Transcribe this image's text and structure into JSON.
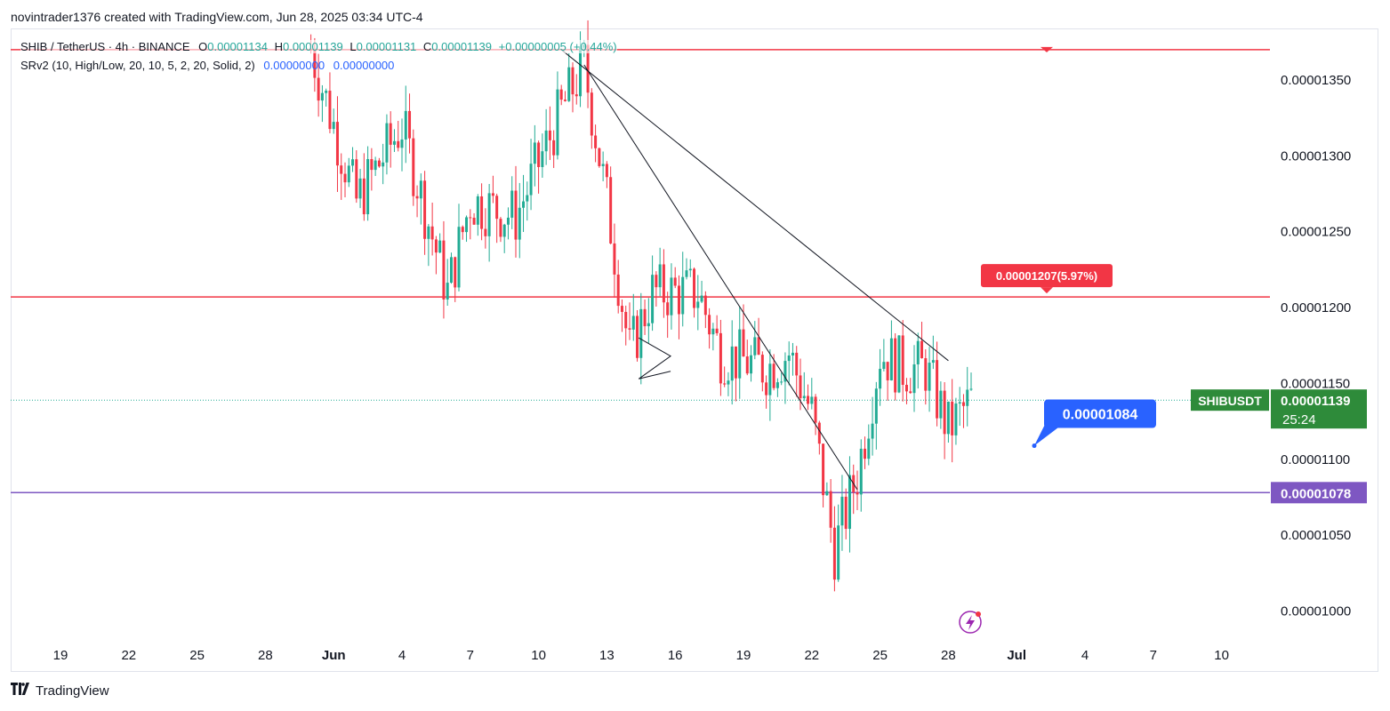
{
  "header": {
    "text": "novintrader1376 created with TradingView.com, Jun 28, 2025 03:34 UTC-4"
  },
  "legend": {
    "symbol": "SHIB / TetherUS · 4h · BINANCE",
    "o_key": "O",
    "o_val": "0.00001134",
    "h_key": "H",
    "h_val": "0.00001139",
    "l_key": "L",
    "l_val": "0.00001131",
    "c_key": "C",
    "c_val": "0.00001139",
    "change": "+0.00000005 (+0.44%)",
    "indicator": "SRv2 (10, High/Low, 20, 10, 5, 2, 20, Solid, 2)",
    "ind_val1": "0.00000000",
    "ind_val2": "0.00000000"
  },
  "footer": {
    "brand": "TradingView"
  },
  "colors": {
    "up": "#22ab94",
    "down": "#f23645",
    "resistance_line": "#f23645",
    "support_line": "#7e57c2",
    "price_tag": "#2e8b3a",
    "note_tag": "#2962ff",
    "trendline": "#131722"
  },
  "chart_data": {
    "type": "candlestick",
    "symbol": "SHIBUSDT",
    "timeframe": "4h",
    "x_tick_labels": [
      "19",
      "22",
      "25",
      "28",
      "Jun",
      "4",
      "7",
      "10",
      "13",
      "16",
      "19",
      "22",
      "25",
      "28",
      "Jul",
      "4",
      "7",
      "10"
    ],
    "y_tick_labels": [
      "0.00001350",
      "0.00001300",
      "0.00001250",
      "0.00001200",
      "0.00001150",
      "0.00001100",
      "0.00001050",
      "0.00001000"
    ],
    "ylim": [
      9.78e-06,
      1.384e-05
    ],
    "last_price": "0.00001139",
    "countdown": "25:24",
    "symbol_tag": "SHIBUSDT",
    "horizontal_lines": [
      {
        "name": "top resistance",
        "value": 1.37e-05,
        "color": "#f23645"
      },
      {
        "name": "resistance",
        "value": 1.207e-05,
        "color": "#f23645",
        "label": "0.00001207(5.97%)"
      },
      {
        "name": "support",
        "value": 1.078e-05,
        "color": "#7e57c2",
        "label": "0.00001078"
      }
    ],
    "note_label": "0.00001084",
    "trendlines": [
      {
        "from": [
          "Jun 10",
          1.37e-05
        ],
        "to": [
          "Jun 27",
          1.165e-05
        ]
      },
      {
        "from": [
          "Jun 11",
          1.36e-05
        ],
        "to": [
          "Jun 23",
          1.08e-05
        ]
      }
    ],
    "anchors": [
      {
        "date": "May 30",
        "value": 1.37e-05
      },
      {
        "date": "Jun 1",
        "value": 1.27e-05
      },
      {
        "date": "Jun 3",
        "value": 1.32e-05
      },
      {
        "date": "Jun 5",
        "value": 1.21e-05
      },
      {
        "date": "Jun 6",
        "value": 1.27e-05
      },
      {
        "date": "Jun 8",
        "value": 1.26e-05
      },
      {
        "date": "Jun 10",
        "value": 1.33e-05
      },
      {
        "date": "Jun 11",
        "value": 1.36e-05
      },
      {
        "date": "Jun 12",
        "value": 1.27e-05
      },
      {
        "date": "Jun 13",
        "value": 1.17e-05
      },
      {
        "date": "Jun 14",
        "value": 1.21e-05
      },
      {
        "date": "Jun 16",
        "value": 1.21e-05
      },
      {
        "date": "Jun 17",
        "value": 1.17e-05
      },
      {
        "date": "Jun 19",
        "value": 1.16e-05
      },
      {
        "date": "Jun 20",
        "value": 1.17e-05
      },
      {
        "date": "Jun 21",
        "value": 1.13e-05
      },
      {
        "date": "Jun 22",
        "value": 1.04e-05
      },
      {
        "date": "Jun 23",
        "value": 1.09e-05
      },
      {
        "date": "Jun 24",
        "value": 1.17e-05
      },
      {
        "date": "Jun 25",
        "value": 1.16e-05
      },
      {
        "date": "Jun 26",
        "value": 1.16e-05
      },
      {
        "date": "Jun 27",
        "value": 1.12e-05
      },
      {
        "date": "Jun 28",
        "value": 1.139e-05
      }
    ]
  }
}
